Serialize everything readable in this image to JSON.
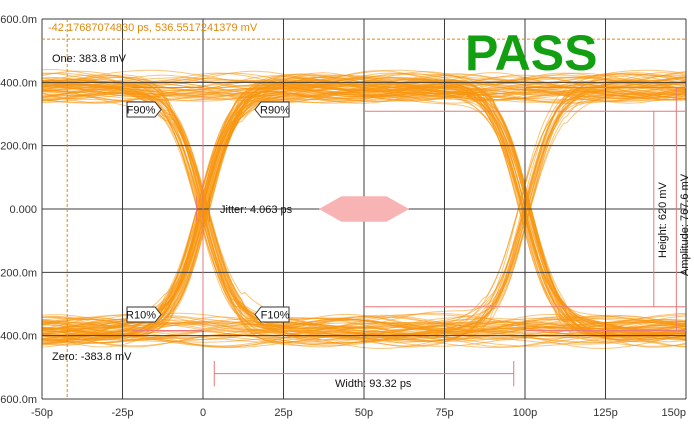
{
  "chart_data": {
    "type": "eye-diagram",
    "status": "PASS",
    "cursor_readout": "-42.17687074830 ps, 536.5517241379 mV",
    "cursor": {
      "x": -42.177,
      "y": 536.55
    },
    "xlim": [
      -50,
      150
    ],
    "ylim": [
      -600,
      600
    ],
    "x_ticks": [
      {
        "value": -50,
        "label": "-50p"
      },
      {
        "value": -25,
        "label": "-25p"
      },
      {
        "value": 0,
        "label": "0"
      },
      {
        "value": 25,
        "label": "25p"
      },
      {
        "value": 50,
        "label": "50p"
      },
      {
        "value": 75,
        "label": "75p"
      },
      {
        "value": 100,
        "label": "100p"
      },
      {
        "value": 125,
        "label": "125p"
      },
      {
        "value": 150,
        "label": "150p"
      }
    ],
    "y_ticks": [
      {
        "value": 600,
        "label": "600.0m"
      },
      {
        "value": 400,
        "label": "400.0m"
      },
      {
        "value": 200,
        "label": "200.0m"
      },
      {
        "value": 0,
        "label": "0.000"
      },
      {
        "value": -200,
        "label": "-200.0m"
      },
      {
        "value": -400,
        "label": "-400.0m"
      },
      {
        "value": -600,
        "label": "-600.0m"
      }
    ],
    "grid": true,
    "one_level": 383.8,
    "zero_level": -383.8,
    "crossings": [
      0,
      100
    ],
    "rise_time_ps": 35,
    "measurements": {
      "one": "One: 383.8 mV",
      "zero": "Zero: -383.8 mV",
      "jitter": "Jitter: 4.063 ps",
      "width": "Width: 93.32 ps",
      "height": "Height: 620 mV",
      "amplitude": "Amplitude: 767.6 mV"
    },
    "markers": [
      "F90%",
      "R90%",
      "R10%",
      "F10%"
    ],
    "colors": {
      "trace": "#f7960f",
      "grid": "#3c3c3c",
      "measure": "#e87878",
      "mask": "#f8b4b4",
      "pass": "#12a012",
      "cursor": "#e08a10"
    }
  }
}
